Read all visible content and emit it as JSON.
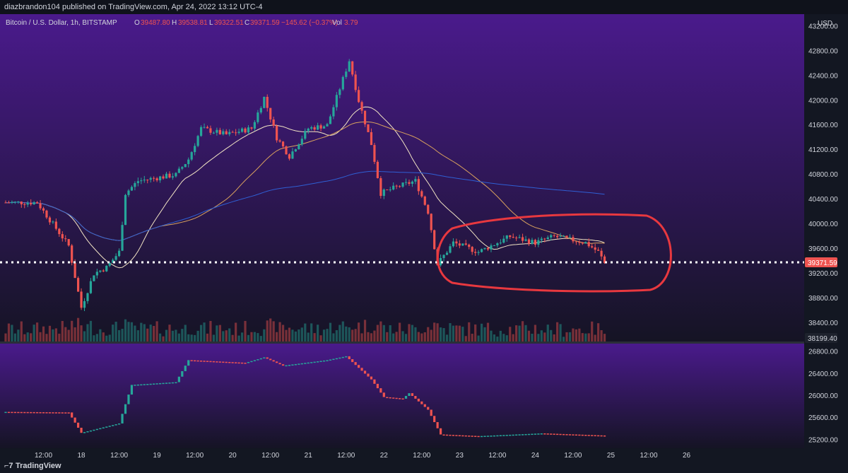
{
  "header": {
    "published_line": "diazbrandon104 published on TradingView.com, Apr 24, 2022 13:12 UTC-4"
  },
  "legend": {
    "symbol": "Bitcoin / U.S. Dollar, 1h, BITSTAMP",
    "o_label": "O",
    "o_value": "39487.80",
    "h_label": "H",
    "h_value": "39538.81",
    "l_label": "L",
    "l_value": "39322.51",
    "c_label": "C",
    "c_value": "39371.59",
    "change": "−145.62 (−0.37%)",
    "vol_label": "Vol",
    "vol_value": "3.79"
  },
  "colors": {
    "bull": "#26a69a",
    "bear": "#ef5350",
    "bg_top": "#4a1a8c",
    "bg_bottom": "#151424",
    "annotation": "#e8383f",
    "ma_fast": "#f2e4c4",
    "ma_mid": "#d9a15e",
    "ma_slow": "#2f5fd4"
  },
  "price_axis": {
    "currency": "USD",
    "ticks": [
      "43200.00",
      "42800.00",
      "42400.00",
      "42000.00",
      "41600.00",
      "41200.00",
      "40800.00",
      "40400.00",
      "40000.00",
      "39600.00",
      "39200.00",
      "38800.00",
      "38400.00"
    ],
    "last_price_label": "39371.59",
    "volume_label": "38199.40"
  },
  "indicator_axis": {
    "ticks": [
      "26800.00",
      "26400.00",
      "26000.00",
      "25600.00",
      "25200.00"
    ]
  },
  "time_axis": {
    "labels": [
      "12:00",
      "18",
      "12:00",
      "19",
      "12:00",
      "20",
      "12:00",
      "21",
      "12:00",
      "22",
      "12:00",
      "23",
      "12:00",
      "24",
      "12:00",
      "25",
      "12:00",
      "26"
    ]
  },
  "footer": {
    "brand": "TradingView"
  },
  "chart_data": {
    "type": "candlestick",
    "symbol": "Bitcoin / U.S. Dollar",
    "interval": "1h",
    "exchange": "BITSTAMP",
    "ylim": [
      38100,
      43400
    ],
    "x_range_hours": [
      0,
      204
    ],
    "time_ticks_hours": [
      12,
      24,
      36,
      48,
      60,
      72,
      84,
      96,
      108,
      120,
      132,
      144,
      156,
      168,
      180,
      192,
      204,
      216
    ],
    "key_points": [
      {
        "hour": 0,
        "price": 40350
      },
      {
        "hour": 10,
        "price": 40350
      },
      {
        "hour": 20,
        "price": 39650
      },
      {
        "hour": 24,
        "price": 38650
      },
      {
        "hour": 28,
        "price": 39200
      },
      {
        "hour": 32,
        "price": 39300
      },
      {
        "hour": 36,
        "price": 39550
      },
      {
        "hour": 38,
        "price": 40500
      },
      {
        "hour": 42,
        "price": 40700
      },
      {
        "hour": 54,
        "price": 40800
      },
      {
        "hour": 58,
        "price": 41050
      },
      {
        "hour": 62,
        "price": 41550
      },
      {
        "hour": 70,
        "price": 41450
      },
      {
        "hour": 78,
        "price": 41550
      },
      {
        "hour": 82,
        "price": 42050
      },
      {
        "hour": 86,
        "price": 41400
      },
      {
        "hour": 90,
        "price": 41100
      },
      {
        "hour": 96,
        "price": 41550
      },
      {
        "hour": 102,
        "price": 41600
      },
      {
        "hour": 106,
        "price": 42200
      },
      {
        "hour": 109,
        "price": 42650
      },
      {
        "hour": 112,
        "price": 42000
      },
      {
        "hour": 116,
        "price": 41300
      },
      {
        "hour": 119,
        "price": 40500
      },
      {
        "hour": 124,
        "price": 40600
      },
      {
        "hour": 130,
        "price": 40700
      },
      {
        "hour": 134,
        "price": 40200
      },
      {
        "hour": 137,
        "price": 39350
      },
      {
        "hour": 142,
        "price": 39700
      },
      {
        "hour": 150,
        "price": 39550
      },
      {
        "hour": 160,
        "price": 39800
      },
      {
        "hour": 168,
        "price": 39700
      },
      {
        "hour": 174,
        "price": 39800
      },
      {
        "hour": 184,
        "price": 39700
      },
      {
        "hour": 188,
        "price": 39550
      },
      {
        "hour": 190,
        "price": 39371.59
      }
    ],
    "last_close": 39371.59,
    "volume_last": 38199.4,
    "indicator_ylim": [
      25050,
      26950
    ],
    "indicator_key_points": [
      {
        "hour": 0,
        "value": 25710
      },
      {
        "hour": 20,
        "value": 25700
      },
      {
        "hour": 24,
        "value": 25330
      },
      {
        "hour": 36,
        "value": 25500
      },
      {
        "hour": 40,
        "value": 26200
      },
      {
        "hour": 54,
        "value": 26250
      },
      {
        "hour": 58,
        "value": 26650
      },
      {
        "hour": 76,
        "value": 26600
      },
      {
        "hour": 82,
        "value": 26700
      },
      {
        "hour": 88,
        "value": 26550
      },
      {
        "hour": 102,
        "value": 26650
      },
      {
        "hour": 108,
        "value": 26720
      },
      {
        "hour": 116,
        "value": 26300
      },
      {
        "hour": 120,
        "value": 25980
      },
      {
        "hour": 126,
        "value": 25950
      },
      {
        "hour": 128,
        "value": 26050
      },
      {
        "hour": 134,
        "value": 25750
      },
      {
        "hour": 138,
        "value": 25300
      },
      {
        "hour": 150,
        "value": 25270
      },
      {
        "hour": 170,
        "value": 25320
      },
      {
        "hour": 190,
        "value": 25280
      }
    ]
  }
}
